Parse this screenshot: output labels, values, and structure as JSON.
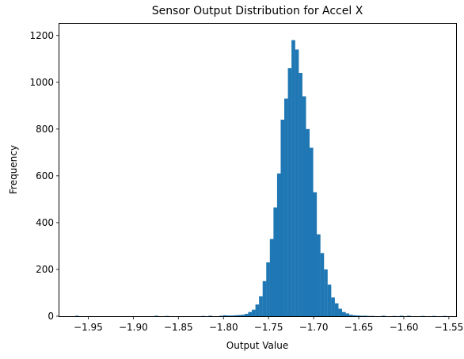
{
  "chart_data": {
    "type": "bar",
    "title": "Sensor Output Distribution for Accel X",
    "xlabel": "Output Value",
    "ylabel": "Frequency",
    "xlim": [
      -1.982,
      -1.542
    ],
    "ylim": [
      0,
      1250
    ],
    "xticks": [
      -1.95,
      -1.9,
      -1.85,
      -1.8,
      -1.75,
      -1.7,
      -1.65,
      -1.6,
      -1.55
    ],
    "xtick_labels": [
      "−1.95",
      "−1.90",
      "−1.85",
      "−1.80",
      "−1.75",
      "−1.70",
      "−1.65",
      "−1.60",
      "−1.55"
    ],
    "yticks": [
      0,
      200,
      400,
      600,
      800,
      1000,
      1200
    ],
    "ytick_labels": [
      "0",
      "200",
      "400",
      "600",
      "800",
      "1000",
      "1200"
    ],
    "bar_color": "#1f77b4",
    "grid": false,
    "legend": "none",
    "bin_width": 0.0041,
    "bins": [
      [
        -1.9625,
        2
      ],
      [
        -1.8745,
        2
      ],
      [
        -1.8625,
        1
      ],
      [
        -1.8225,
        1
      ],
      [
        -1.8145,
        2
      ],
      [
        -1.8025,
        2
      ],
      [
        -1.7985,
        4
      ],
      [
        -1.7945,
        3
      ],
      [
        -1.7905,
        3
      ],
      [
        -1.7865,
        4
      ],
      [
        -1.7825,
        5
      ],
      [
        -1.7785,
        6
      ],
      [
        -1.7745,
        10
      ],
      [
        -1.7705,
        18
      ],
      [
        -1.7665,
        28
      ],
      [
        -1.7625,
        50
      ],
      [
        -1.7585,
        85
      ],
      [
        -1.7545,
        150
      ],
      [
        -1.7505,
        230
      ],
      [
        -1.7465,
        330
      ],
      [
        -1.7425,
        465
      ],
      [
        -1.7385,
        610
      ],
      [
        -1.7345,
        840
      ],
      [
        -1.7305,
        930
      ],
      [
        -1.7265,
        1060
      ],
      [
        -1.7225,
        1180
      ],
      [
        -1.7185,
        1140
      ],
      [
        -1.7145,
        1040
      ],
      [
        -1.7105,
        940
      ],
      [
        -1.7065,
        800
      ],
      [
        -1.7025,
        720
      ],
      [
        -1.6985,
        530
      ],
      [
        -1.6945,
        350
      ],
      [
        -1.6905,
        270
      ],
      [
        -1.6865,
        200
      ],
      [
        -1.6825,
        135
      ],
      [
        -1.6785,
        80
      ],
      [
        -1.6745,
        55
      ],
      [
        -1.6705,
        32
      ],
      [
        -1.6665,
        18
      ],
      [
        -1.6625,
        12
      ],
      [
        -1.6585,
        6
      ],
      [
        -1.6545,
        4
      ],
      [
        -1.6505,
        3
      ],
      [
        -1.6465,
        2
      ],
      [
        -1.6425,
        2
      ],
      [
        -1.6385,
        1
      ],
      [
        -1.6345,
        1
      ],
      [
        -1.6225,
        2
      ],
      [
        -1.6105,
        1
      ],
      [
        -1.6025,
        2
      ],
      [
        -1.5945,
        2
      ],
      [
        -1.5785,
        1
      ],
      [
        -1.5665,
        1
      ],
      [
        -1.5545,
        1
      ]
    ]
  }
}
